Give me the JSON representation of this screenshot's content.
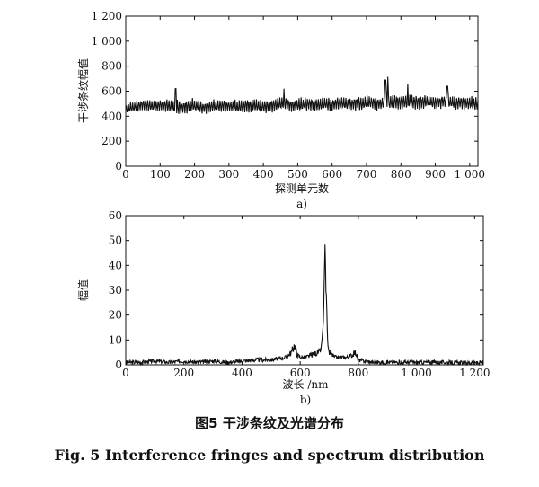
{
  "figure": {
    "caption_cn": "图5  干涉条纹及光谱分布",
    "caption_en": "Fig. 5  Interference fringes and spectrum distribution"
  },
  "chart_data": [
    {
      "type": "line",
      "sub_label": "a)",
      "xlabel": "探测单元数",
      "ylabel": "干涉条纹幅值",
      "xlim": [
        0,
        1024
      ],
      "ylim": [
        0,
        1200
      ],
      "x_ticks": [
        0,
        100,
        200,
        300,
        400,
        500,
        600,
        700,
        800,
        900,
        1000
      ],
      "x_tick_labels": [
        "0",
        "100",
        "200",
        "300",
        "400",
        "500",
        "600",
        "700",
        "800",
        "900",
        "1 000"
      ],
      "y_ticks": [
        0,
        200,
        400,
        600,
        800,
        1000,
        1200
      ],
      "y_tick_labels": [
        "0",
        "200",
        "400",
        "600",
        "800",
        "1 000",
        "1 200"
      ],
      "series": [
        {
          "x": [
            0,
            16,
            32,
            48,
            64,
            80,
            96,
            112,
            128,
            144,
            160,
            176,
            192,
            208,
            224,
            240,
            256,
            272,
            288,
            304,
            320,
            336,
            352,
            368,
            384,
            400,
            416,
            432,
            448,
            464,
            480,
            496,
            512,
            528,
            544,
            560,
            576,
            592,
            608,
            624,
            640,
            656,
            672,
            688,
            704,
            720,
            736,
            752,
            768,
            784,
            800,
            816,
            832,
            848,
            864,
            880,
            896,
            912,
            928,
            944,
            960,
            976,
            992,
            1008,
            1024
          ],
          "center": [
            450,
            470,
            480,
            485,
            490,
            480,
            485,
            490,
            480,
            470,
            470,
            480,
            490,
            480,
            470,
            475,
            480,
            480,
            485,
            480,
            475,
            480,
            485,
            490,
            480,
            480,
            485,
            490,
            495,
            500,
            490,
            485,
            490,
            500,
            495,
            490,
            500,
            495,
            500,
            505,
            495,
            500,
            505,
            500,
            505,
            510,
            500,
            505,
            510,
            520,
            515,
            510,
            520,
            510,
            515,
            520,
            510,
            515,
            520,
            510,
            505,
            515,
            505,
            500,
            490
          ],
          "amplitude": [
            70,
            80,
            90,
            90,
            100,
            90,
            95,
            100,
            100,
            110,
            100,
            100,
            100,
            90,
            90,
            95,
            100,
            100,
            90,
            95,
            100,
            100,
            100,
            95,
            90,
            100,
            100,
            100,
            110,
            100,
            100,
            95,
            100,
            100,
            100,
            100,
            100,
            100,
            100,
            100,
            100,
            100,
            100,
            100,
            100,
            110,
            100,
            110,
            120,
            110,
            110,
            110,
            110,
            110,
            110,
            100,
            100,
            100,
            110,
            100,
            100,
            100,
            100,
            100,
            100
          ]
        }
      ],
      "peaks": [
        {
          "x": 145,
          "y": 620
        },
        {
          "x": 460,
          "y": 620
        },
        {
          "x": 762,
          "y": 715
        },
        {
          "x": 755,
          "y": 690
        },
        {
          "x": 820,
          "y": 660
        },
        {
          "x": 935,
          "y": 640
        }
      ]
    },
    {
      "type": "line",
      "sub_label": "b)",
      "xlabel": "波长 /nm",
      "ylabel": "幅值",
      "xlim": [
        0,
        1230
      ],
      "ylim": [
        0,
        60
      ],
      "x_ticks": [
        0,
        200,
        400,
        600,
        800,
        1000,
        1200
      ],
      "x_tick_labels": [
        "0",
        "200",
        "400",
        "600",
        "800",
        "1 000",
        "1 200"
      ],
      "y_ticks": [
        0,
        10,
        20,
        30,
        40,
        50,
        60
      ],
      "y_tick_labels": [
        "0",
        "10",
        "20",
        "30",
        "40",
        "50",
        "60"
      ],
      "series": [
        {
          "x": [
            0,
            50,
            100,
            150,
            200,
            250,
            300,
            350,
            400,
            450,
            500,
            550,
            570,
            580,
            590,
            600,
            620,
            640,
            660,
            670,
            675,
            680,
            683,
            686,
            688,
            690,
            692,
            695,
            700,
            710,
            720,
            740,
            760,
            780,
            790,
            800,
            820,
            850,
            900,
            950,
            1000,
            1050,
            1100,
            1150,
            1200,
            1230
          ],
          "y": [
            1,
            1,
            1.5,
            1,
            1.5,
            1,
            1.5,
            1,
            1.5,
            2,
            2,
            3,
            5,
            8,
            4,
            3,
            3,
            4,
            5,
            5,
            10,
            18,
            35,
            51,
            30,
            28,
            20,
            8,
            5,
            4,
            3,
            3,
            3,
            4,
            5,
            2,
            1.5,
            1,
            1,
            1,
            1,
            1,
            1,
            0.8,
            0.8,
            0.8
          ]
        }
      ]
    }
  ]
}
